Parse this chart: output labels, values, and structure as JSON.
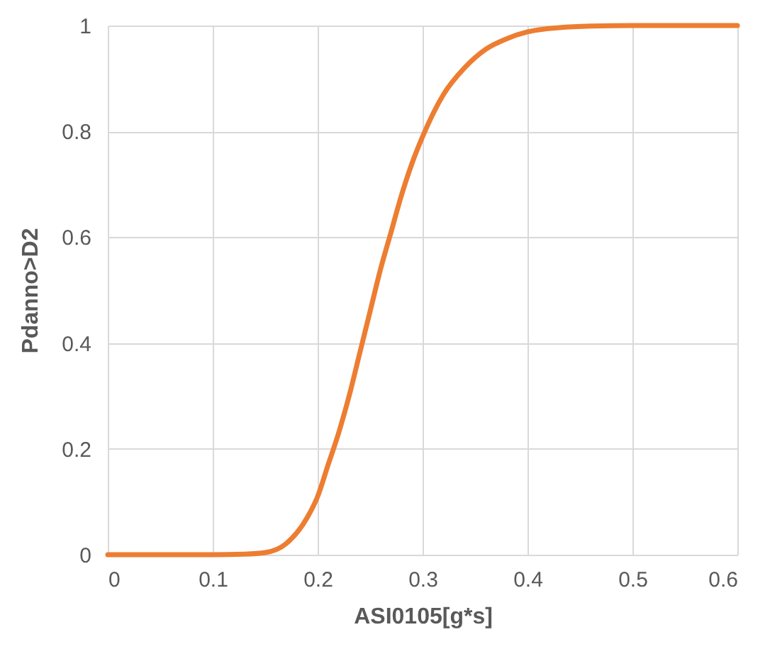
{
  "chart_data": {
    "type": "line",
    "xlabel": "ASI0105[g*s]",
    "ylabel": "Pdanno>D2",
    "x": [
      0,
      0.05,
      0.1,
      0.13,
      0.15,
      0.17,
      0.19,
      0.2,
      0.21,
      0.22,
      0.23,
      0.24,
      0.25,
      0.26,
      0.27,
      0.28,
      0.29,
      0.3,
      0.32,
      0.34,
      0.36,
      0.38,
      0.4,
      0.43,
      0.46,
      0.5,
      0.6
    ],
    "series": [
      {
        "color": "#ed7d31",
        "values": [
          0,
          0,
          0,
          0.001,
          0.004,
          0.021,
          0.07,
          0.11,
          0.17,
          0.23,
          0.3,
          0.38,
          0.46,
          0.54,
          0.61,
          0.68,
          0.74,
          0.79,
          0.87,
          0.92,
          0.955,
          0.975,
          0.988,
          0.996,
          0.999,
          1,
          1
        ]
      }
    ],
    "xlim": [
      0,
      0.6
    ],
    "xticks": [
      0,
      0.1,
      0.2,
      0.3,
      0.4,
      0.5,
      0.6
    ],
    "ylim": [
      0,
      1
    ],
    "yticks": [
      0,
      0.2,
      0.4,
      0.6,
      0.8,
      1
    ],
    "grid": true,
    "marker": "none",
    "line_style": "solid"
  }
}
